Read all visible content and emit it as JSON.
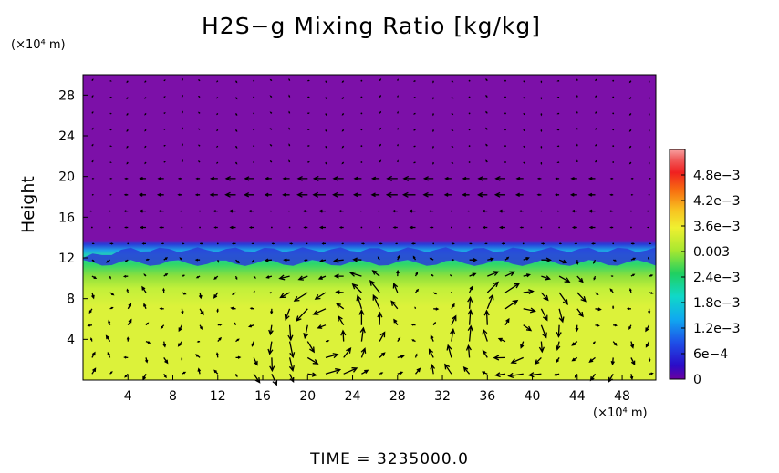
{
  "title": "H2S−g Mixing Ratio [kg/kg]",
  "time_label": "TIME = 3235000.0",
  "chart_data": {
    "type": "heatmap",
    "title": "H2S−g Mixing Ratio [kg/kg]",
    "ylabel": "Height",
    "y_unit": "(×10⁴ m)",
    "x_unit": "(×10⁴ m)",
    "xlim": [
      0,
      51
    ],
    "ylim": [
      0,
      30
    ],
    "x_ticks": [
      "4",
      "8",
      "12",
      "16",
      "20",
      "24",
      "28",
      "32",
      "36",
      "40",
      "44",
      "48"
    ],
    "y_ticks": [
      "4",
      "8",
      "12",
      "16",
      "20",
      "24",
      "28"
    ],
    "colorbar": {
      "ticks": [
        "4.8e−3",
        "4.2e−3",
        "3.6e−3",
        "0.003",
        "2.4e−3",
        "1.8e−3",
        "1.2e−3",
        "6e−4",
        "0"
      ],
      "values": [
        0.0048,
        0.0042,
        0.0036,
        0.003,
        0.0024,
        0.0018,
        0.0012,
        0.0006,
        0
      ],
      "range": [
        0,
        0.0054
      ]
    },
    "field": {
      "upper_value": 0,
      "interface_height": 12.8,
      "lower_value": 0.0033,
      "upper_color": "#7c10a8",
      "interface_colors": [
        "#2a3cd8",
        "#1ea0e8",
        "#20d0b8"
      ],
      "lower_colors": [
        "#2ed66a",
        "#8fe03c",
        "#c2f03a",
        "#dcf23a"
      ]
    },
    "vectors": {
      "shown": true,
      "color": "#000000",
      "jet_height": 19,
      "vortex_centers_x": [
        22,
        39
      ]
    }
  }
}
